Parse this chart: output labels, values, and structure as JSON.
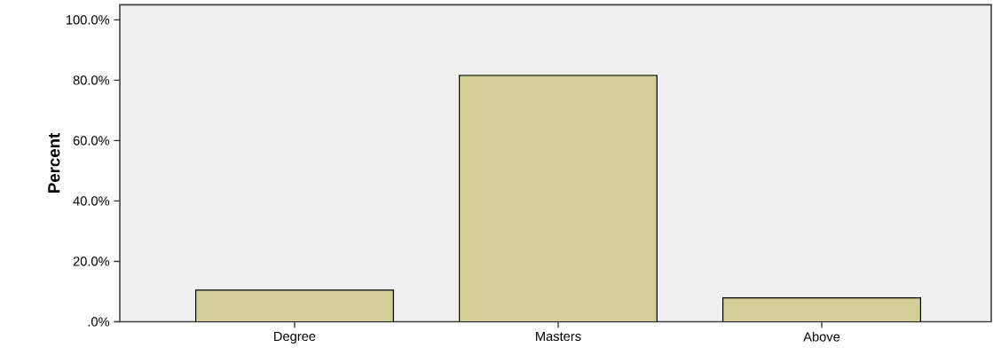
{
  "chart_data": {
    "type": "bar",
    "ylabel": "Percent",
    "categories": [
      "Degree",
      "Masters",
      "Above"
    ],
    "values": [
      10.5,
      81.6,
      7.9
    ],
    "color": "#d3ce97",
    "ylim": [
      0,
      105
    ],
    "yticks": [
      {
        "value": 0,
        "label": ".0%"
      },
      {
        "value": 20,
        "label": "20.0%"
      },
      {
        "value": 40,
        "label": "40.0%"
      },
      {
        "value": 60,
        "label": "60.0%"
      },
      {
        "value": 80,
        "label": "80.0%"
      },
      {
        "value": 100,
        "label": "100.0%"
      }
    ],
    "grid": false
  }
}
